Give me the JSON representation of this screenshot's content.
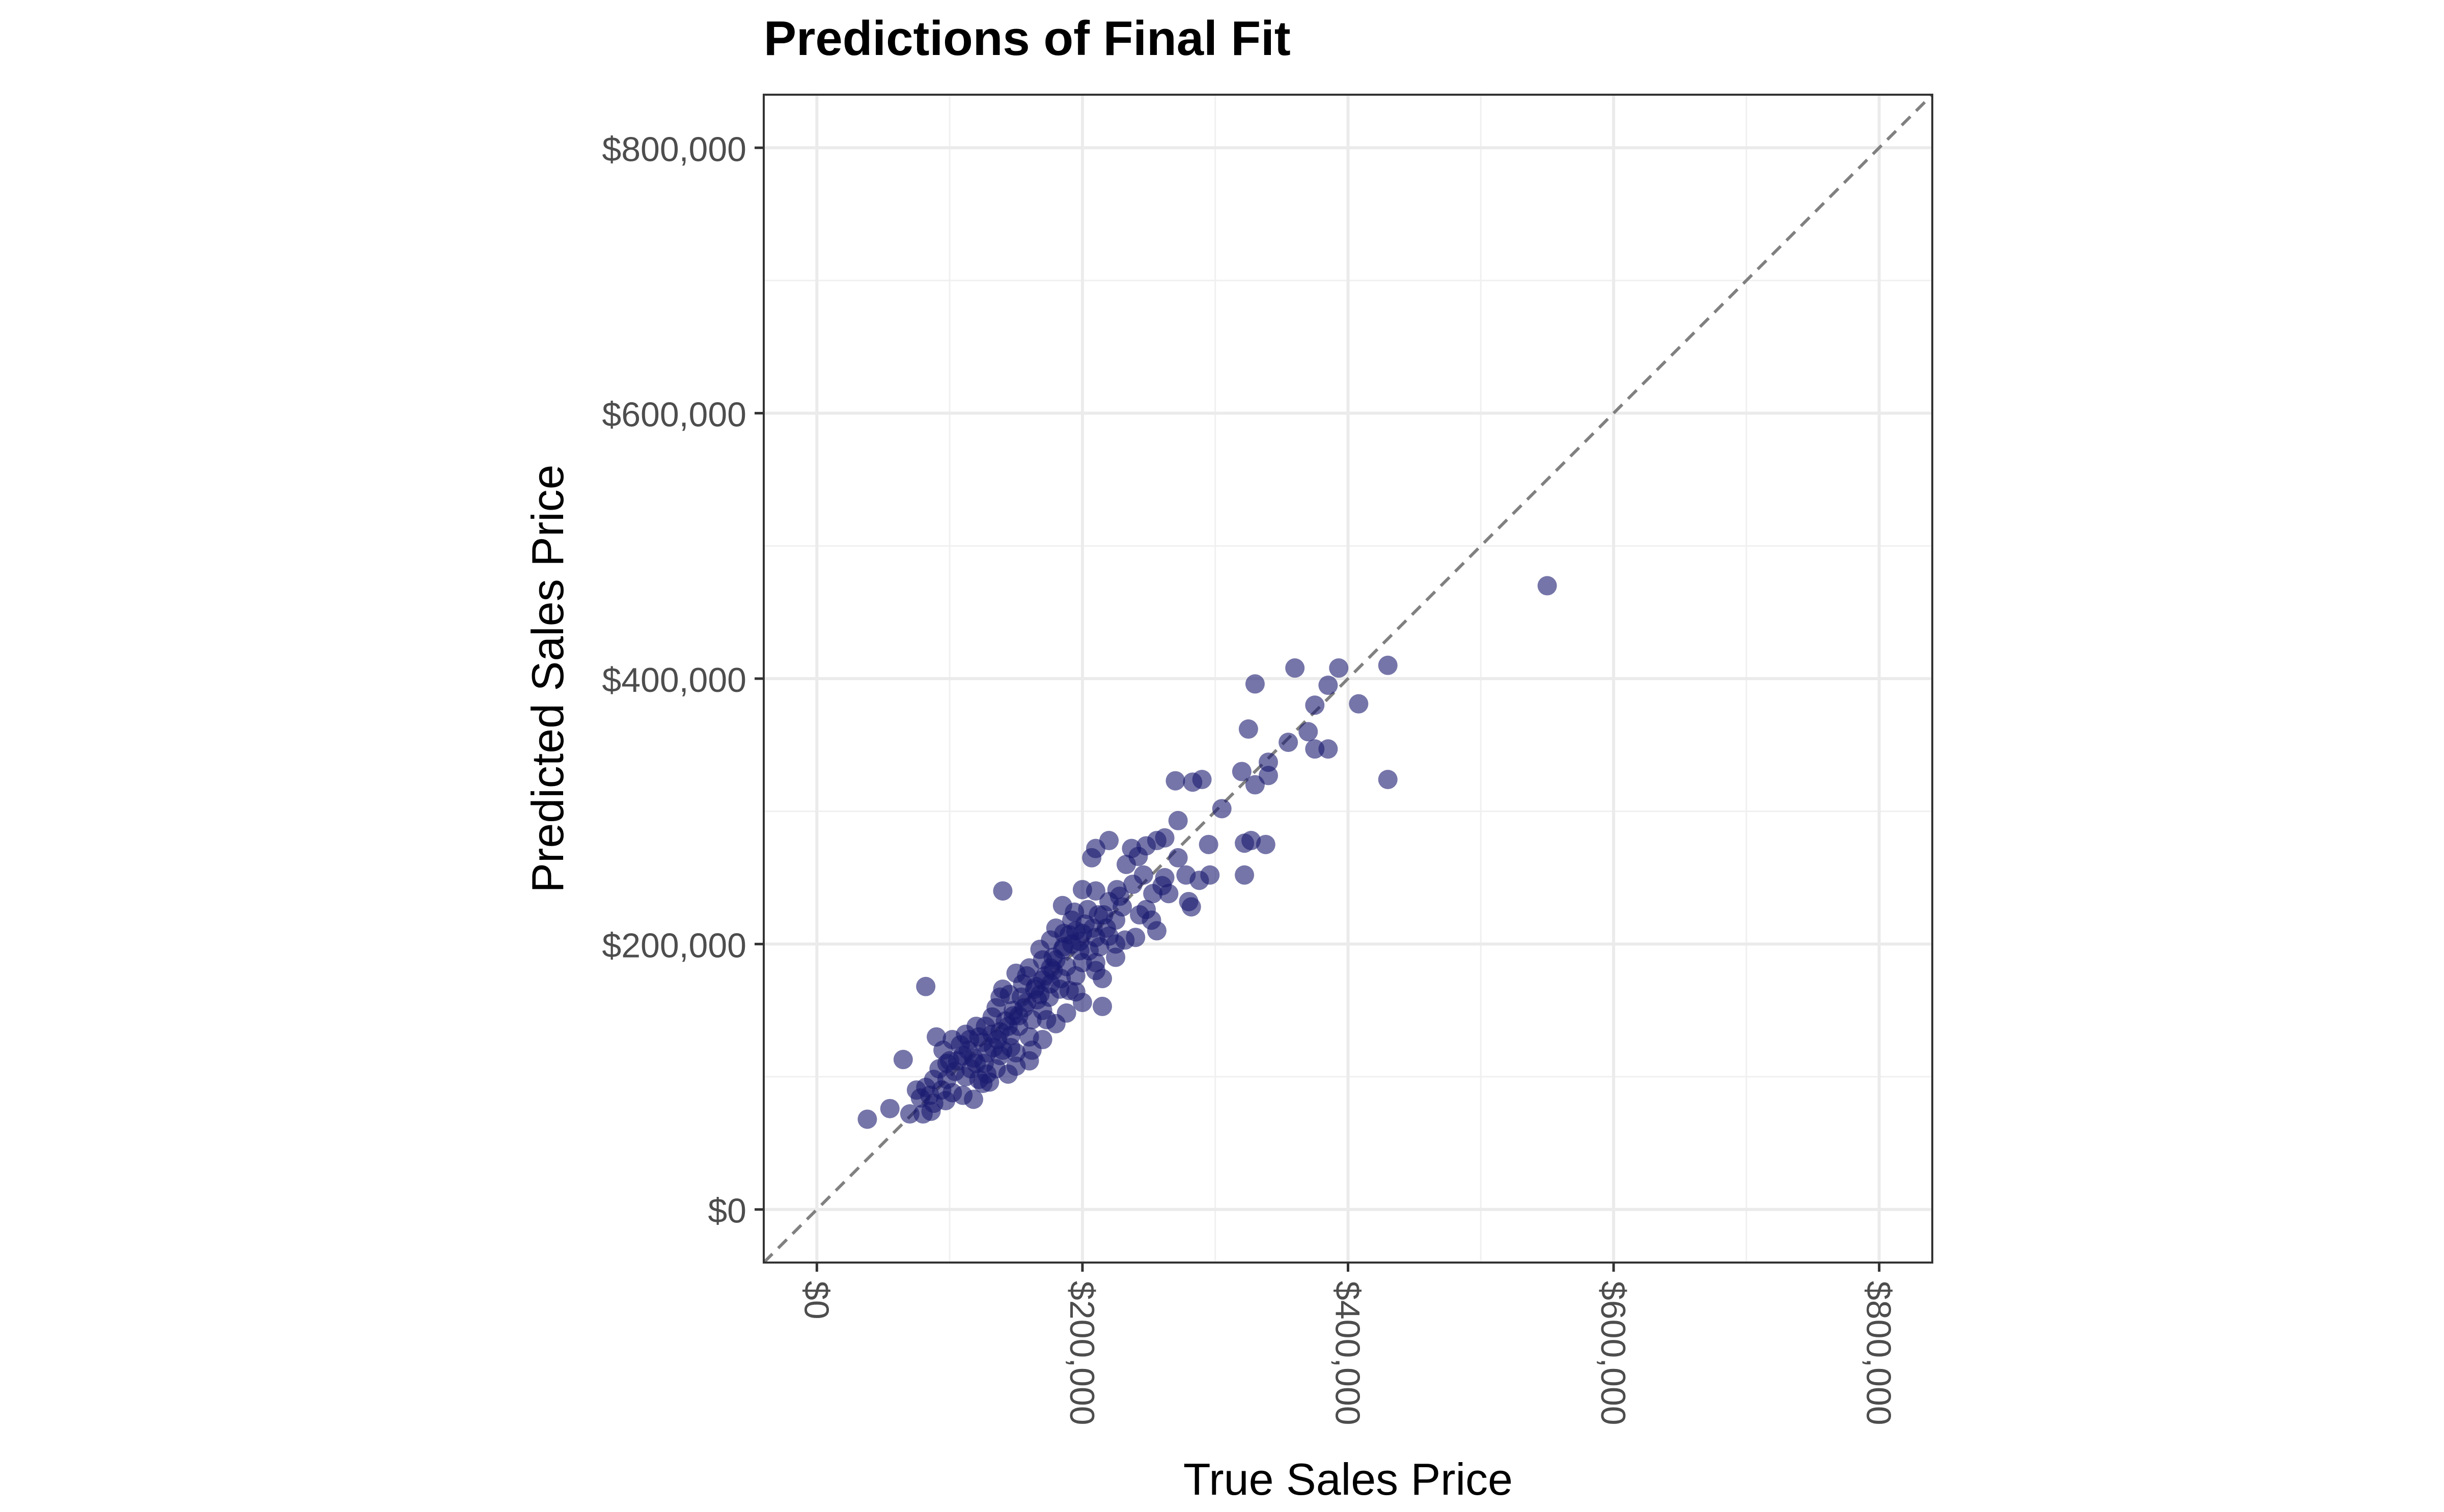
{
  "chart_data": {
    "type": "scatter",
    "title": "Predictions of Final Fit",
    "xlabel": "True Sales Price",
    "ylabel": "Predicted Sales Price",
    "xlim": [
      -40000,
      840000
    ],
    "ylim": [
      -40000,
      840000
    ],
    "x_ticks": [
      0,
      200000,
      400000,
      600000,
      800000
    ],
    "y_ticks": [
      0,
      200000,
      400000,
      600000,
      800000
    ],
    "x_tick_labels": [
      "$0",
      "$200,000",
      "$400,000",
      "$600,000",
      "$800,000"
    ],
    "y_tick_labels": [
      "$0",
      "$200,000",
      "$400,000",
      "$600,000",
      "$800,000"
    ],
    "x_tick_rotation": "vertical",
    "grid": true,
    "reference_line": {
      "type": "identity",
      "slope": 1,
      "intercept": 0,
      "style": "dashed",
      "color": "#808080"
    },
    "point_color": "#191970",
    "point_opacity": 0.6,
    "series": [
      {
        "points": [
          [
            550000,
            470000
          ],
          [
            430000,
            410000
          ],
          [
            393000,
            408000
          ],
          [
            360000,
            408000
          ],
          [
            330000,
            396000
          ],
          [
            385000,
            395000
          ],
          [
            408000,
            381000
          ],
          [
            375000,
            380000
          ],
          [
            370000,
            360000
          ],
          [
            325000,
            362000
          ],
          [
            355000,
            352000
          ],
          [
            375000,
            347000
          ],
          [
            385000,
            347000
          ],
          [
            340000,
            337000
          ],
          [
            320000,
            330000
          ],
          [
            430000,
            324000
          ],
          [
            340000,
            327000
          ],
          [
            290000,
            324000
          ],
          [
            283000,
            322000
          ],
          [
            270000,
            323000
          ],
          [
            330000,
            320000
          ],
          [
            305000,
            302000
          ],
          [
            338000,
            275000
          ],
          [
            327000,
            278000
          ],
          [
            322000,
            276000
          ],
          [
            295000,
            275000
          ],
          [
            272000,
            293000
          ],
          [
            262000,
            280000
          ],
          [
            256000,
            278000
          ],
          [
            248000,
            274000
          ],
          [
            242000,
            266000
          ],
          [
            237000,
            272000
          ],
          [
            220000,
            278000
          ],
          [
            210000,
            272000
          ],
          [
            207000,
            265000
          ],
          [
            233000,
            260000
          ],
          [
            272000,
            265000
          ],
          [
            278000,
            252000
          ],
          [
            288000,
            248000
          ],
          [
            296000,
            252000
          ],
          [
            322000,
            252000
          ],
          [
            265000,
            238000
          ],
          [
            280000,
            232000
          ],
          [
            282000,
            228000
          ],
          [
            253000,
            238000
          ],
          [
            260000,
            244000
          ],
          [
            226000,
            241000
          ],
          [
            238000,
            245000
          ],
          [
            210000,
            240000
          ],
          [
            200000,
            241000
          ],
          [
            220000,
            232000
          ],
          [
            230000,
            228000
          ],
          [
            252000,
            218000
          ],
          [
            256000,
            210000
          ],
          [
            243000,
            222000
          ],
          [
            225000,
            218000
          ],
          [
            212000,
            222000
          ],
          [
            202000,
            215000
          ],
          [
            194000,
            224000
          ],
          [
            185000,
            229000
          ],
          [
            180000,
            212000
          ],
          [
            190000,
            207000
          ],
          [
            210000,
            205000
          ],
          [
            220000,
            206000
          ],
          [
            232000,
            203000
          ],
          [
            225000,
            200000
          ],
          [
            213000,
            198000
          ],
          [
            198000,
            195000
          ],
          [
            185000,
            196000
          ],
          [
            176000,
            203000
          ],
          [
            170000,
            188000
          ],
          [
            178000,
            180000
          ],
          [
            188000,
            183000
          ],
          [
            200000,
            186000
          ],
          [
            210000,
            186000
          ],
          [
            195000,
            176000
          ],
          [
            215000,
            174000
          ],
          [
            190000,
            165000
          ],
          [
            183000,
            166000
          ],
          [
            170000,
            173000
          ],
          [
            160000,
            182000
          ],
          [
            150000,
            178000
          ],
          [
            155000,
            170000
          ],
          [
            165000,
            168000
          ],
          [
            175000,
            160000
          ],
          [
            170000,
            150000
          ],
          [
            188000,
            148000
          ],
          [
            200000,
            156000
          ],
          [
            215000,
            153000
          ],
          [
            145000,
            162000
          ],
          [
            140000,
            166000
          ],
          [
            135000,
            152000
          ],
          [
            148000,
            146000
          ],
          [
            156000,
            152000
          ],
          [
            162000,
            143000
          ],
          [
            173000,
            143000
          ],
          [
            132000,
            145000
          ],
          [
            127000,
            138000
          ],
          [
            138000,
            134000
          ],
          [
            146000,
            131000
          ],
          [
            152000,
            138000
          ],
          [
            160000,
            130000
          ],
          [
            120000,
            138000
          ],
          [
            115000,
            128000
          ],
          [
            125000,
            126000
          ],
          [
            133000,
            122000
          ],
          [
            140000,
            120000
          ],
          [
            150000,
            118000
          ],
          [
            162000,
            120000
          ],
          [
            108000,
            124000
          ],
          [
            102000,
            128000
          ],
          [
            110000,
            116000
          ],
          [
            118000,
            114000
          ],
          [
            126000,
            110000
          ],
          [
            135000,
            106000
          ],
          [
            144000,
            102000
          ],
          [
            100000,
            112000
          ],
          [
            95000,
            120000
          ],
          [
            92000,
            106000
          ],
          [
            104000,
            104000
          ],
          [
            112000,
            100000
          ],
          [
            122000,
            98000
          ],
          [
            130000,
            96000
          ],
          [
            88000,
            98000
          ],
          [
            82000,
            92000
          ],
          [
            94000,
            90000
          ],
          [
            102000,
            88000
          ],
          [
            110000,
            86000
          ],
          [
            118000,
            83000
          ],
          [
            85000,
            86000
          ],
          [
            88000,
            80000
          ],
          [
            97000,
            82000
          ],
          [
            78000,
            84000
          ],
          [
            80000,
            72000
          ],
          [
            70000,
            72000
          ],
          [
            55000,
            76000
          ],
          [
            38000,
            68000
          ],
          [
            65000,
            113000
          ],
          [
            75000,
            90000
          ],
          [
            86000,
            74000
          ],
          [
            82000,
            168000
          ],
          [
            140000,
            240000
          ],
          [
            90000,
            130000
          ],
          [
            98000,
            110000
          ],
          [
            125000,
            95000
          ],
          [
            138000,
            160000
          ],
          [
            158000,
            176000
          ],
          [
            168000,
            196000
          ],
          [
            178000,
            190000
          ],
          [
            195000,
            210000
          ],
          [
            205000,
            195000
          ],
          [
            218000,
            212000
          ],
          [
            204000,
            226000
          ],
          [
            192000,
            218000
          ],
          [
            186000,
            208000
          ],
          [
            176000,
            182000
          ],
          [
            166000,
            158000
          ],
          [
            154000,
            160000
          ],
          [
            148000,
            150000
          ],
          [
            142000,
            142000
          ],
          [
            132000,
            132000
          ],
          [
            122000,
            130000
          ],
          [
            114000,
            120000
          ],
          [
            106000,
            112000
          ],
          [
            98000,
            98000
          ],
          [
            116000,
            106000
          ],
          [
            128000,
            118000
          ],
          [
            136000,
            128000
          ],
          [
            144000,
            138000
          ],
          [
            152000,
            146000
          ],
          [
            158000,
            156000
          ],
          [
            164000,
            166000
          ],
          [
            172000,
            176000
          ],
          [
            180000,
            188000
          ],
          [
            186000,
            198000
          ],
          [
            198000,
            202000
          ],
          [
            208000,
            212000
          ],
          [
            216000,
            222000
          ],
          [
            228000,
            236000
          ],
          [
            246000,
            252000
          ],
          [
            112000,
            132000
          ],
          [
            120000,
            110000
          ],
          [
            128000,
            102000
          ],
          [
            138000,
            116000
          ],
          [
            146000,
            122000
          ],
          [
            168000,
            162000
          ],
          [
            176000,
            170000
          ],
          [
            184000,
            174000
          ],
          [
            192000,
            200000
          ],
          [
            200000,
            208000
          ],
          [
            150000,
            108000
          ],
          [
            160000,
            112000
          ],
          [
            170000,
            128000
          ],
          [
            180000,
            140000
          ],
          [
            195000,
            164000
          ],
          [
            210000,
            180000
          ],
          [
            225000,
            190000
          ],
          [
            240000,
            205000
          ],
          [
            248000,
            226000
          ],
          [
            262000,
            250000
          ]
        ]
      }
    ]
  }
}
